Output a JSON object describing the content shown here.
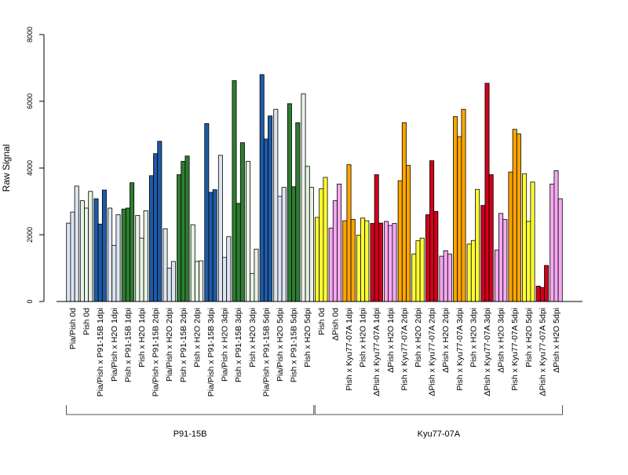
{
  "chart_data": {
    "type": "bar",
    "ylabel": "Raw Signal",
    "ylim": [
      0,
      8000
    ],
    "yticks": [
      0,
      2000,
      4000,
      6000,
      8000
    ],
    "colors": {
      "lightblue": "#dce6f2",
      "darkblue": "#1f5aa6",
      "lightgreen": "#e8f3e4",
      "darkgreen": "#2e7d32",
      "yellow": "#ffff33",
      "pink": "#f6a8f0",
      "orange": "#ffa500",
      "red": "#d0021b"
    },
    "bar_groups": [
      {
        "label": "Pia/Pish 0d",
        "color": "lightblue",
        "values": [
          2350,
          2680,
          3460
        ]
      },
      {
        "label": "Pish 0d",
        "color": "lightgreen",
        "values": [
          3020,
          2800,
          3300
        ]
      },
      {
        "label": "Pia/Pish x P91-15B 1dpi",
        "color": "darkblue",
        "values": [
          3080,
          2320,
          3340
        ]
      },
      {
        "label": "Pia/Pish x H2O 1dpi",
        "color": "lightblue",
        "values": [
          2800,
          1680,
          2600
        ]
      },
      {
        "label": "Pish x P91-15B 1dpi",
        "color": "darkgreen",
        "values": [
          2770,
          2800,
          3560
        ]
      },
      {
        "label": "Pish x H2O 1dpi",
        "color": "lightgreen",
        "values": [
          2580,
          1900,
          2720
        ]
      },
      {
        "label": "Pia/Pish x P91-15B 2dpi",
        "color": "darkblue",
        "values": [
          3770,
          4430,
          4800
        ]
      },
      {
        "label": "Pia/Pish x H2O 2dpi",
        "color": "lightblue",
        "values": [
          2180,
          1000,
          1200
        ]
      },
      {
        "label": "Pish x P91-15B 2dpi",
        "color": "darkgreen",
        "values": [
          3800,
          4200,
          4360
        ]
      },
      {
        "label": "Pish x H2O 2dpi",
        "color": "lightgreen",
        "values": [
          2300,
          1200,
          1220
        ]
      },
      {
        "label": "Pia/Pish x P91-15B 3dpi",
        "color": "darkblue",
        "values": [
          5330,
          3270,
          3350
        ]
      },
      {
        "label": "Pia/Pish x H2O 3dpi",
        "color": "lightblue",
        "values": [
          4380,
          1320,
          1940
        ]
      },
      {
        "label": "Pish x P91-15B 3dpi",
        "color": "darkgreen",
        "values": [
          6620,
          2940,
          4760
        ]
      },
      {
        "label": "Pish x H2O 3dpi",
        "color": "lightgreen",
        "values": [
          4200,
          840,
          1570
        ]
      },
      {
        "label": "Pia/Pish x P91-15B 5dpi",
        "color": "darkblue",
        "values": [
          6800,
          4870,
          5560
        ]
      },
      {
        "label": "Pia/Pish x H2O 5dpi",
        "color": "lightblue",
        "values": [
          5760,
          3150,
          3420
        ]
      },
      {
        "label": "Pish x P91-15B 5dpi",
        "color": "darkgreen",
        "values": [
          5930,
          3440,
          5360
        ]
      },
      {
        "label": "Pish x H2O 5dpi",
        "color": "lightgreen",
        "values": [
          6220,
          4050,
          3420
        ]
      },
      {
        "label": "Pish 0d",
        "color": "yellow",
        "values": [
          2520,
          3380,
          3720
        ]
      },
      {
        "label": "ΔPish 0d",
        "color": "pink",
        "values": [
          2200,
          3020,
          3520
        ]
      },
      {
        "label": "Pish x Kyu77-07A 1dpi",
        "color": "orange",
        "values": [
          2420,
          4100,
          2460
        ]
      },
      {
        "label": "Pish x H2O 1dpi",
        "color": "yellow",
        "values": [
          1990,
          2500,
          2420
        ]
      },
      {
        "label": "ΔPish x Kyu77-07A 1dpi",
        "color": "red",
        "values": [
          2340,
          3800,
          2350
        ]
      },
      {
        "label": "ΔPish x H2O 1dpi",
        "color": "pink",
        "values": [
          2400,
          2280,
          2340
        ]
      },
      {
        "label": "Pish x Kyu77-07A 2dpi",
        "color": "orange",
        "values": [
          3620,
          5360,
          4080
        ]
      },
      {
        "label": "Pish x H2O 2dpi",
        "color": "yellow",
        "values": [
          1420,
          1820,
          1900
        ]
      },
      {
        "label": "ΔPish x Kyu77-07A 2dpi",
        "color": "red",
        "values": [
          2600,
          4220,
          2700
        ]
      },
      {
        "label": "ΔPish x H2O 2dpi",
        "color": "pink",
        "values": [
          1360,
          1520,
          1420
        ]
      },
      {
        "label": "Pish x Kyu77-07A 3dpi",
        "color": "orange",
        "values": [
          5540,
          4940,
          5760
        ]
      },
      {
        "label": "Pish x H2O 3dpi",
        "color": "yellow",
        "values": [
          1720,
          1830,
          3360
        ]
      },
      {
        "label": "ΔPish x Kyu77-07A 3dpi",
        "color": "red",
        "values": [
          2880,
          6540,
          3800
        ]
      },
      {
        "label": "ΔPish x H2O 3dpi",
        "color": "pink",
        "values": [
          1540,
          2640,
          2460
        ]
      },
      {
        "label": "Pish x Kyu77-07A 5dpi",
        "color": "orange",
        "values": [
          3880,
          5160,
          5020
        ]
      },
      {
        "label": "Pish x H2O 5dpi",
        "color": "yellow",
        "values": [
          3830,
          2400,
          3580
        ]
      },
      {
        "label": "ΔPish x Kyu77-07A 5dpi",
        "color": "red",
        "values": [
          460,
          420,
          1080
        ]
      },
      {
        "label": "ΔPish x H2O 5dpi",
        "color": "pink",
        "values": [
          3520,
          3920,
          3080
        ]
      }
    ],
    "tick_labels": [
      "Pia/Pish 0d",
      "Pish 0d",
      "Pia/Pish x P91-15B 1dpi",
      "Pia/Pish x H2O 1dpi",
      "Pish x P91-15B 1dpi",
      "Pish x H2O 1dpi",
      "Pia/Pish x P91-15B 2dpi",
      "Pia/Pish x H2O 2dpi",
      "Pish x P91-15B 2dpi",
      "Pish x H2O 2dpi",
      "Pia/Pish x P91-15B 3dpi",
      "Pia/Pish x H2O 3dpi",
      "Pish x P91-15B 3dpi",
      "Pish x H2O 3dpi",
      "Pia/Pish x P91-15B 5dpi",
      "Pia/Pish x H2O 5dpi",
      "Pish x P91-15B 5dpi",
      "Pish x H2O 5dpi",
      "Pish 0d",
      "ΔPish 0d",
      "Pish x Kyu77-07A 1dpi",
      "Pish x H2O 1dpi",
      "ΔPish x Kyu77-07A 1dpi",
      "ΔPish x H2O 1dpi",
      "Pish x Kyu77-07A 2dpi",
      "Pish x H2O 2dpi",
      "ΔPish x Kyu77-07A 2dpi",
      "ΔPish x H2O 2dpi",
      "Pish x Kyu77-07A 3dpi",
      "Pish x H2O 3dpi",
      "ΔPish x Kyu77-07A 3dpi",
      "ΔPish x H2O 3dpi",
      "Pish x Kyu77-07A 5dpi",
      "Pish x H2O 5dpi",
      "ΔPish x Kyu77-07A 5dpi",
      "ΔPish x H2O 5dpi"
    ],
    "sections": [
      {
        "label": "P91-15B",
        "from": 0,
        "to": 17
      },
      {
        "label": "Kyu77-07A",
        "from": 18,
        "to": 35
      }
    ]
  }
}
